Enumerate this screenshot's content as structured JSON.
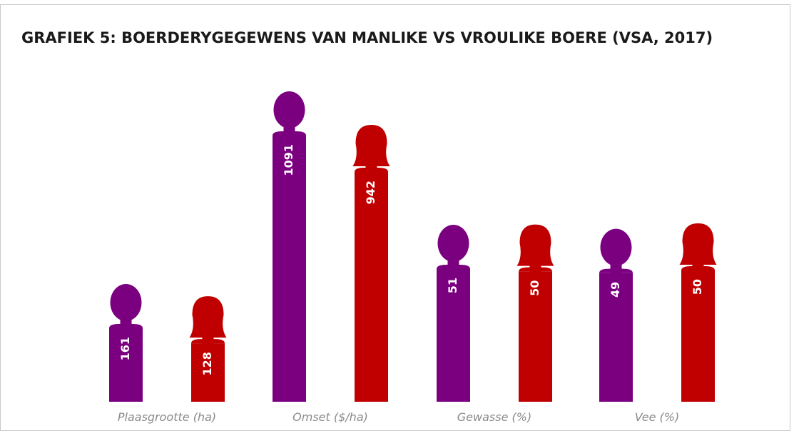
{
  "chart_data": {
    "type": "pictogram-bar",
    "title": "GRAFIEK 5: BOERDERYGEGEWENS VAN MANLIKE VS VROULIKE BOERE (VSA, 2017)",
    "categories": [
      "Plaasgrootte  (ha)",
      "Omset ($/ha)",
      "Gewasse (%)",
      "Vee (%)"
    ],
    "series": [
      {
        "color": "#7b0080",
        "icon": "male",
        "values": [
          161,
          1091,
          51,
          49
        ]
      },
      {
        "color": "#c00000",
        "icon": "female",
        "values": [
          128,
          942,
          50,
          50
        ]
      }
    ]
  }
}
